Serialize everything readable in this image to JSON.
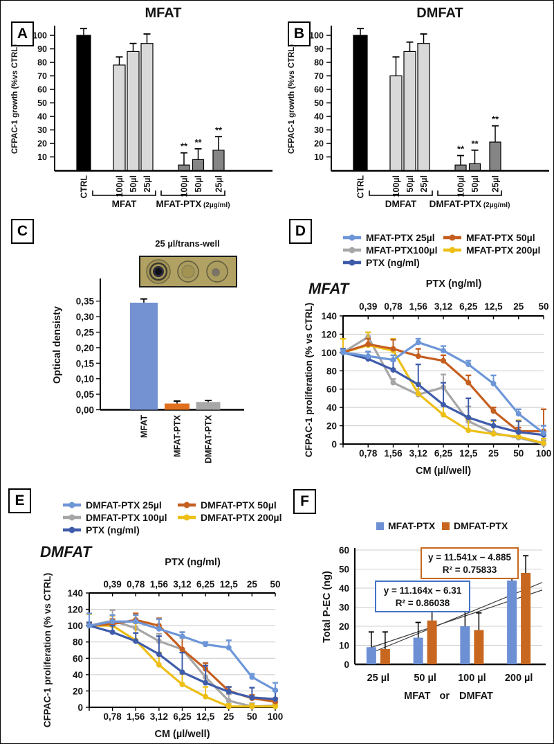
{
  "panels": {
    "a": {
      "label": "A"
    },
    "b": {
      "label": "B"
    },
    "c": {
      "label": "C",
      "caption": "25 µl/trans-well"
    },
    "d": {
      "label": "D"
    },
    "e": {
      "label": "E"
    },
    "f": {
      "label": "F"
    }
  },
  "chart_data": [
    {
      "panel": "A",
      "type": "bar",
      "title": "MFAT",
      "ylabel": "CFPAC-1 growth (%vs CTRL)",
      "ylim": [
        0,
        110
      ],
      "yticks": [
        10,
        20,
        30,
        40,
        50,
        60,
        70,
        80,
        90,
        100
      ],
      "categories": [
        "CTRL",
        "100µl",
        "50µl",
        "25µl",
        "100µl",
        "50µl",
        "25µl"
      ],
      "values": [
        100,
        78,
        88,
        94,
        4,
        8,
        15
      ],
      "errors": [
        5,
        6,
        6,
        7,
        9,
        8,
        10
      ],
      "sig": [
        "",
        "",
        "",
        "",
        "**",
        "**",
        "**"
      ],
      "bar_colors": [
        "#000000",
        "#d9d9d9",
        "#d9d9d9",
        "#d9d9d9",
        "#858585",
        "#858585",
        "#858585"
      ],
      "groups": [
        {
          "label": "MFAT",
          "sub": "",
          "from": 1,
          "to": 3
        },
        {
          "label": "MFAT-PTX",
          "sub": "(2µg/ml)",
          "from": 4,
          "to": 6
        }
      ]
    },
    {
      "panel": "B",
      "type": "bar",
      "title": "DMFAT",
      "ylabel": "CFPAC-1 growth (%vs CTRL)",
      "ylim": [
        0,
        110
      ],
      "yticks": [
        10,
        20,
        30,
        40,
        50,
        60,
        70,
        80,
        90,
        100
      ],
      "categories": [
        "CTRL",
        "100µl",
        "50µl",
        "25µl",
        "100µl",
        "50µl",
        "25µl"
      ],
      "values": [
        100,
        70,
        88,
        94,
        4,
        5,
        21
      ],
      "errors": [
        5,
        14,
        7,
        7,
        7,
        10,
        12
      ],
      "sig": [
        "",
        "",
        "",
        "",
        "**",
        "**",
        "**"
      ],
      "bar_colors": [
        "#000000",
        "#d9d9d9",
        "#d9d9d9",
        "#d9d9d9",
        "#858585",
        "#858585",
        "#858585"
      ],
      "groups": [
        {
          "label": "DMFAT",
          "sub": "",
          "from": 1,
          "to": 3
        },
        {
          "label": "DMFAT-PTX",
          "sub": "(2µg/ml)",
          "from": 4,
          "to": 6
        }
      ]
    },
    {
      "panel": "C",
      "type": "bar",
      "title": "",
      "ylabel": "Optical densisty",
      "ylim": [
        0,
        0.38
      ],
      "ytick_labels": [
        "0,00",
        "0,05",
        "0,10",
        "0,15",
        "0,20",
        "0,25",
        "0,30",
        "0,35"
      ],
      "categories": [
        "MFAT",
        "MFAT-PTX",
        "DMFAT-PTX"
      ],
      "values": [
        0.345,
        0.02,
        0.025
      ],
      "errors": [
        0.012,
        0.008,
        0.005
      ],
      "bar_colors": [
        "#7491d2",
        "#e0701e",
        "#a8a8a8"
      ]
    },
    {
      "panel": "D",
      "type": "line",
      "title": "MFAT",
      "top_axis_label": "PTX (ng/ml)",
      "top_ticks": [
        "0,39",
        "0,78",
        "1,56",
        "3,12",
        "6,25",
        "12,5",
        "25",
        "50"
      ],
      "xlabel": "CM (µl/well)",
      "bottom_ticks": [
        "0,78",
        "1,56",
        "3,12",
        "6,25",
        "12,5",
        "25",
        "50",
        "100"
      ],
      "ylabel": "CFPAC-1 proliferation (% vs CTRL)",
      "ylim": [
        0,
        140
      ],
      "yticks": [
        0,
        20,
        40,
        60,
        80,
        100,
        120,
        140
      ],
      "series": [
        {
          "name": "MFAT-PTX 25µl",
          "color": "#6d96d8",
          "values": [
            100,
            96,
            92,
            111,
            102,
            87,
            66,
            33,
            12
          ],
          "err": [
            3,
            5,
            5,
            4,
            5,
            4,
            9,
            5,
            8
          ]
        },
        {
          "name": "MFAT-PTX 50µl",
          "color": "#c55f20",
          "values": [
            100,
            109,
            104,
            96,
            91,
            67,
            36,
            14,
            14
          ],
          "err": [
            4,
            6,
            10,
            8,
            6,
            8,
            4,
            4,
            24
          ]
        },
        {
          "name": "MFAT-PTX100µl",
          "color": "#a6a6a6",
          "values": [
            100,
            117,
            67,
            54,
            62,
            25,
            12,
            7,
            0
          ],
          "err": [
            3,
            5,
            4,
            6,
            14,
            16,
            14,
            5,
            4
          ]
        },
        {
          "name": "MFAT-PTX 200µl",
          "color": "#edbf17",
          "values": [
            100,
            108,
            102,
            55,
            32,
            15,
            11,
            8,
            1
          ],
          "err": [
            15,
            14,
            13,
            12,
            10,
            12,
            14,
            18,
            5
          ]
        },
        {
          "name": "PTX (ng/ml)",
          "color": "#3f5cab",
          "values": [
            100,
            93,
            81,
            65,
            43,
            29,
            20,
            13,
            10
          ],
          "err": [
            4,
            8,
            10,
            22,
            24,
            21,
            6,
            12,
            10
          ]
        }
      ]
    },
    {
      "panel": "E",
      "type": "line",
      "title": "DMFAT",
      "top_axis_label": "PTX (ng/ml)",
      "top_ticks": [
        "0,39",
        "0,78",
        "1,56",
        "3,12",
        "6,25",
        "12,5",
        "25",
        "50"
      ],
      "xlabel": "CM (µl/well)",
      "bottom_ticks": [
        "0,78",
        "1,56",
        "3,12",
        "6,25",
        "12,5",
        "25",
        "50",
        "100"
      ],
      "ylabel": "CFPAC-1 proliferation (% vs CTRL)",
      "ylim": [
        0,
        140
      ],
      "yticks": [
        0,
        20,
        40,
        60,
        80,
        100,
        120,
        140
      ],
      "series": [
        {
          "name": "DMFAT-PTX 25µl",
          "color": "#6d96d8",
          "values": [
            100,
            105,
            105,
            96,
            87,
            77,
            73,
            37,
            21
          ],
          "err": [
            15,
            8,
            8,
            12,
            5,
            3,
            9,
            4,
            9
          ]
        },
        {
          "name": "DMFAT-PTX 50µl",
          "color": "#c55f20",
          "values": [
            100,
            102,
            107,
            100,
            71,
            47,
            20,
            11,
            7
          ],
          "err": [
            3,
            6,
            8,
            9,
            21,
            7,
            5,
            4,
            4
          ]
        },
        {
          "name": "DMFAT-PTX 100µl",
          "color": "#a6a6a6",
          "values": [
            100,
            106,
            97,
            81,
            71,
            37,
            8,
            1,
            2
          ],
          "err": [
            3,
            13,
            16,
            9,
            14,
            17,
            8,
            4,
            4
          ]
        },
        {
          "name": "DMFAT-PTX 200µl",
          "color": "#edbf17",
          "values": [
            100,
            100,
            82,
            52,
            28,
            13,
            1,
            1,
            1
          ],
          "err": [
            14,
            12,
            21,
            15,
            13,
            12,
            3,
            3,
            3
          ]
        },
        {
          "name": "PTX (ng/ml)",
          "color": "#3f5cab",
          "values": [
            100,
            92,
            81,
            65,
            43,
            30,
            19,
            12,
            10
          ],
          "err": [
            4,
            8,
            10,
            22,
            24,
            21,
            6,
            12,
            10
          ]
        }
      ]
    },
    {
      "panel": "F",
      "type": "grouped-bar",
      "ylabel": "Total P-EC (ng)",
      "ylim": [
        0,
        60
      ],
      "yticks": [
        0,
        10,
        20,
        30,
        40,
        50,
        60
      ],
      "categories": [
        "25 µl",
        "50 µl",
        "100 µl",
        "200 µl"
      ],
      "xlabel_words": [
        "MFAT",
        "or",
        "DMFAT"
      ],
      "series": [
        {
          "name": "MFAT-PTX",
          "color": "#6d8fd4",
          "values": [
            9,
            14,
            20,
            44
          ],
          "err": [
            8,
            8,
            8,
            8
          ]
        },
        {
          "name": "DMFAT-PTX",
          "color": "#c8671f",
          "values": [
            8,
            23,
            18,
            48
          ],
          "err": [
            9,
            8,
            9,
            9
          ]
        }
      ],
      "annotations": [
        {
          "line1": "y = 11.541x − 4.885",
          "line2": "R² = 0.75833",
          "border": "#c8671f"
        },
        {
          "line1": "y = 11.164x − 6.31",
          "line2": "R² = 0.86038",
          "border": "#4472c4"
        }
      ],
      "trendlines": [
        {
          "x1": 0.25,
          "y1": 5,
          "x2": 4.0,
          "y2": 43
        },
        {
          "x1": 0.25,
          "y1": 8,
          "x2": 4.0,
          "y2": 39
        }
      ]
    }
  ]
}
